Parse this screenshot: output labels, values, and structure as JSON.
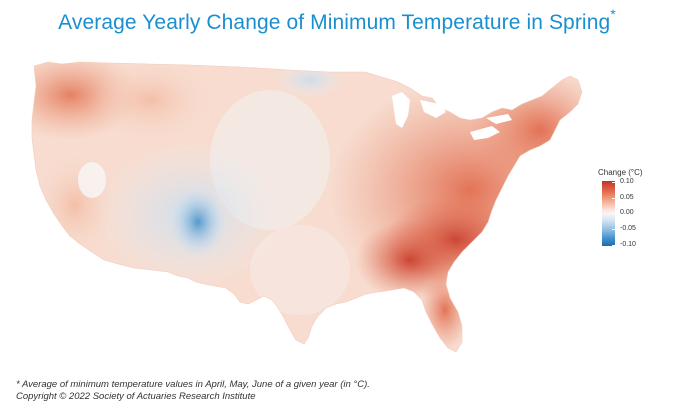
{
  "title": {
    "text": "Average Yearly Change of Minimum Temperature in Spring",
    "asterisk": "*",
    "color": "#1a8fd0"
  },
  "legend": {
    "title": "Change (°C)",
    "ticks": [
      "0.10",
      "0.05",
      "0.00",
      "-0.05",
      "-0.10"
    ],
    "colors": {
      "high": "#c0332b",
      "mid": "#f6f6f6",
      "low": "#1f6ab0"
    }
  },
  "map": {
    "subject": "Contiguous United States",
    "regions": [
      {
        "region": "Pacific Northwest",
        "change": 0.06
      },
      {
        "region": "California coast",
        "change": 0.05
      },
      {
        "region": "Great Basin",
        "change": 0.02
      },
      {
        "region": "Northern Rockies",
        "change": 0.03
      },
      {
        "region": "Northern Plains",
        "change": -0.01
      },
      {
        "region": "Four Corners / Southwest",
        "change": -0.04
      },
      {
        "region": "New Mexico highlands",
        "change": -0.08
      },
      {
        "region": "Central Plains",
        "change": 0.0
      },
      {
        "region": "Texas",
        "change": 0.01
      },
      {
        "region": "Upper Midwest",
        "change": 0.03
      },
      {
        "region": "Ohio Valley",
        "change": 0.06
      },
      {
        "region": "Southeast",
        "change": 0.07
      },
      {
        "region": "Carolinas",
        "change": 0.09
      },
      {
        "region": "Florida",
        "change": 0.06
      },
      {
        "region": "Northeast",
        "change": 0.06
      },
      {
        "region": "New England",
        "change": 0.05
      }
    ]
  },
  "footnote": {
    "line1": "* Average of minimum temperature values in April, May, June of a given year (in  °C).",
    "line2": "Copyright © 2022 Society of Actuaries Research Institute"
  }
}
